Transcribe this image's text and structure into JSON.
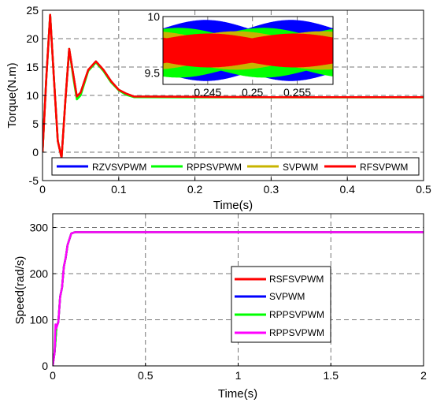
{
  "chart_data": [
    {
      "type": "line",
      "xlabel": "Time(s)",
      "ylabel": "Torque(N.m)",
      "xlim": [
        0,
        0.5
      ],
      "ylim": [
        -5,
        25
      ],
      "xticks": [
        "0",
        "0.1",
        "0.2",
        "0.3",
        "0.4",
        "0.5"
      ],
      "yticks": [
        "-5",
        "0",
        "5",
        "10",
        "15",
        "20",
        "25"
      ],
      "grid": true,
      "legend": {
        "placement": "bottom",
        "entries": [
          "RZVSVPWM",
          "RPPSVPWM",
          "SVPWM",
          "RFSVPWM"
        ]
      },
      "colors": {
        "RZVSVPWM": "#0000ff",
        "RPPSVPWM": "#00ff00",
        "SVPWM": "#c8b400",
        "RFSVPWM": "#ff0000"
      },
      "series": [
        {
          "name": "RZVSVPWM",
          "x": [
            0,
            0.005,
            0.01,
            0.015,
            0.02,
            0.025,
            0.03,
            0.035,
            0.04,
            0.045,
            0.05,
            0.06,
            0.07,
            0.08,
            0.09,
            0.1,
            0.11,
            0.12,
            0.2,
            0.3,
            0.4,
            0.5
          ],
          "y": [
            0,
            13,
            24.2,
            13,
            2,
            -1,
            9,
            18.2,
            14,
            9.8,
            10.5,
            14.5,
            16,
            14.5,
            12.5,
            11,
            10.3,
            9.8,
            9.75,
            9.7,
            9.7,
            9.7
          ]
        },
        {
          "name": "RPPSVPWM",
          "x": [
            0,
            0.005,
            0.01,
            0.015,
            0.02,
            0.025,
            0.03,
            0.035,
            0.04,
            0.045,
            0.05,
            0.06,
            0.07,
            0.08,
            0.09,
            0.1,
            0.11,
            0.12,
            0.2,
            0.3,
            0.4,
            0.5
          ],
          "y": [
            0,
            13,
            24.2,
            13,
            2,
            -1,
            9,
            18.2,
            13.5,
            9.3,
            10,
            14.3,
            15.8,
            14.3,
            12.3,
            10.9,
            10.1,
            9.7,
            9.65,
            9.65,
            9.65,
            9.65
          ]
        },
        {
          "name": "SVPWM",
          "x": [
            0,
            0.005,
            0.01,
            0.015,
            0.02,
            0.025,
            0.03,
            0.035,
            0.04,
            0.045,
            0.05,
            0.06,
            0.07,
            0.08,
            0.09,
            0.1,
            0.11,
            0.12,
            0.2,
            0.3,
            0.4,
            0.5
          ],
          "y": [
            0,
            13,
            24.2,
            13,
            2,
            -1,
            9,
            18.2,
            14,
            9.8,
            10.5,
            14.5,
            16,
            14.5,
            12.5,
            11,
            10.3,
            9.8,
            9.75,
            9.7,
            9.7,
            9.7
          ]
        },
        {
          "name": "RFSVPWM",
          "x": [
            0,
            0.005,
            0.01,
            0.015,
            0.02,
            0.025,
            0.03,
            0.035,
            0.04,
            0.045,
            0.05,
            0.06,
            0.07,
            0.08,
            0.09,
            0.1,
            0.11,
            0.12,
            0.2,
            0.3,
            0.4,
            0.5
          ],
          "y": [
            0,
            13,
            24.2,
            13,
            2,
            -1,
            9,
            18.2,
            14,
            9.8,
            10.5,
            14.5,
            16,
            14.5,
            12.5,
            11,
            10.3,
            9.8,
            9.75,
            9.7,
            9.7,
            9.7
          ]
        }
      ],
      "inset": {
        "xlim": [
          0.24,
          0.259
        ],
        "ylim": [
          9.4,
          10
        ],
        "xticks": [
          "0.245",
          "0.25",
          "0.255"
        ],
        "yticks": [
          "9.5",
          "10"
        ],
        "series_bands": [
          {
            "name": "RZVSVPWM",
            "center": 9.7,
            "amplitude": 0.27
          },
          {
            "name": "RPPSVPWM",
            "center": 9.68,
            "amplitude": 0.22
          },
          {
            "name": "SVPWM",
            "center": 9.7,
            "amplitude": 0.17
          },
          {
            "name": "RFSVPWM",
            "center": 9.7,
            "amplitude": 0.15
          }
        ]
      }
    },
    {
      "type": "line",
      "xlabel": "Time(s)",
      "ylabel": "Speed(rad/s)",
      "xlim": [
        0,
        2
      ],
      "ylim": [
        0,
        330
      ],
      "xticks": [
        "0",
        "0.5",
        "1",
        "1.5",
        "2"
      ],
      "yticks": [
        "0",
        "100",
        "200",
        "300"
      ],
      "grid": true,
      "legend": {
        "placement": "center-right",
        "entries": [
          "RSFSVPWM",
          "SVPWM",
          "RPPSVPWM",
          "RPPSVPWM"
        ]
      },
      "colors": {
        "s1": "#ff0000",
        "s2": "#0000ff",
        "s3": "#00ff00",
        "s4": "#ff00ff"
      },
      "series": [
        {
          "name": "RSFSVPWM",
          "x": [
            0,
            0.01,
            0.02,
            0.03,
            0.04,
            0.05,
            0.06,
            0.07,
            0.08,
            0.1,
            0.12,
            0.15,
            0.2,
            0.5,
            1,
            1.5,
            2
          ],
          "y": [
            0,
            30,
            85,
            95,
            150,
            170,
            215,
            235,
            262,
            287,
            290,
            290,
            290,
            290,
            290,
            290,
            290
          ]
        },
        {
          "name": "SVPWM",
          "x": [
            0,
            0.01,
            0.02,
            0.03,
            0.04,
            0.05,
            0.06,
            0.07,
            0.08,
            0.1,
            0.12,
            0.15,
            0.2,
            0.5,
            1,
            1.5,
            2
          ],
          "y": [
            0,
            30,
            85,
            95,
            150,
            170,
            215,
            235,
            262,
            287,
            290,
            290,
            290,
            290,
            290,
            290,
            290
          ]
        },
        {
          "name": "RPPSVPWM",
          "x": [
            0,
            0.01,
            0.02,
            0.03,
            0.04,
            0.05,
            0.06,
            0.07,
            0.08,
            0.1,
            0.12,
            0.15,
            0.2,
            0.5,
            1,
            1.5,
            2
          ],
          "y": [
            0,
            30,
            85,
            95,
            150,
            170,
            215,
            235,
            262,
            287,
            290,
            290,
            290,
            290,
            290,
            290,
            290
          ]
        },
        {
          "name": "RPPSVPWM",
          "x": [
            0,
            0.01,
            0.015,
            0.02,
            0.03,
            0.04,
            0.05,
            0.06,
            0.07,
            0.08,
            0.1,
            0.12,
            0.15,
            0.2,
            0.5,
            1,
            1.5,
            2
          ],
          "y": [
            0,
            30,
            90,
            82,
            95,
            150,
            170,
            215,
            235,
            262,
            287,
            290,
            290,
            290,
            290,
            290,
            290,
            290
          ]
        }
      ]
    }
  ]
}
